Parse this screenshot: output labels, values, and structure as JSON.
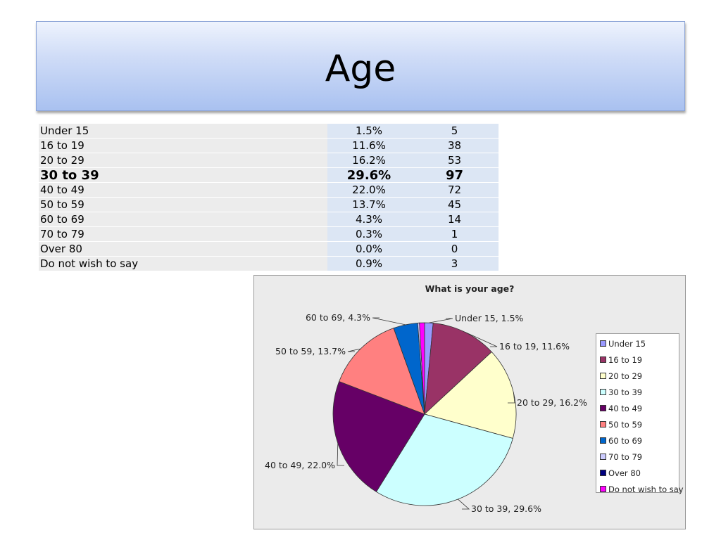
{
  "slide": {
    "title": "Age"
  },
  "table": {
    "rows": [
      {
        "category": "Under 15",
        "percent": "1.5%",
        "count": "5",
        "bold": false
      },
      {
        "category": "16 to 19",
        "percent": "11.6%",
        "count": "38",
        "bold": false
      },
      {
        "category": "20 to 29",
        "percent": "16.2%",
        "count": "53",
        "bold": false
      },
      {
        "category": "30 to 39",
        "percent": "29.6%",
        "count": "97",
        "bold": true
      },
      {
        "category": "40 to 49",
        "percent": "22.0%",
        "count": "72",
        "bold": false
      },
      {
        "category": "50 to 59",
        "percent": "13.7%",
        "count": "45",
        "bold": false
      },
      {
        "category": "60 to 69",
        "percent": "4.3%",
        "count": "14",
        "bold": false
      },
      {
        "category": "70 to 79",
        "percent": "0.3%",
        "count": "1",
        "bold": false
      },
      {
        "category": "Over 80",
        "percent": "0.0%",
        "count": "0",
        "bold": false
      },
      {
        "category": "Do not wish to say",
        "percent": "0.9%",
        "count": "3",
        "bold": false
      }
    ]
  },
  "chart_data": {
    "type": "pie",
    "title": "What is your age?",
    "categories": [
      "Under 15",
      "16 to 19",
      "20 to 29",
      "30 to 39",
      "40 to 49",
      "50 to 59",
      "60 to 69",
      "70 to 79",
      "Over 80",
      "Do not wish to say"
    ],
    "values": [
      1.5,
      11.6,
      16.2,
      29.6,
      22.0,
      13.7,
      4.3,
      0.3,
      0.0,
      0.9
    ],
    "colors": [
      "#9999ff",
      "#993366",
      "#ffffcc",
      "#ccffff",
      "#660066",
      "#ff8080",
      "#0066cc",
      "#ccccff",
      "#000080",
      "#ff00ff"
    ],
    "data_labels": [
      "Under 15, 1.5%",
      "16 to 19, 11.6%",
      "20 to 29, 16.2%",
      "30 to 39, 29.6%",
      "40 to 49, 22.0%",
      "50 to 59, 13.7%",
      "60 to 69, 4.3%",
      "",
      "",
      ""
    ],
    "legend_placement": "right",
    "grid": false
  }
}
